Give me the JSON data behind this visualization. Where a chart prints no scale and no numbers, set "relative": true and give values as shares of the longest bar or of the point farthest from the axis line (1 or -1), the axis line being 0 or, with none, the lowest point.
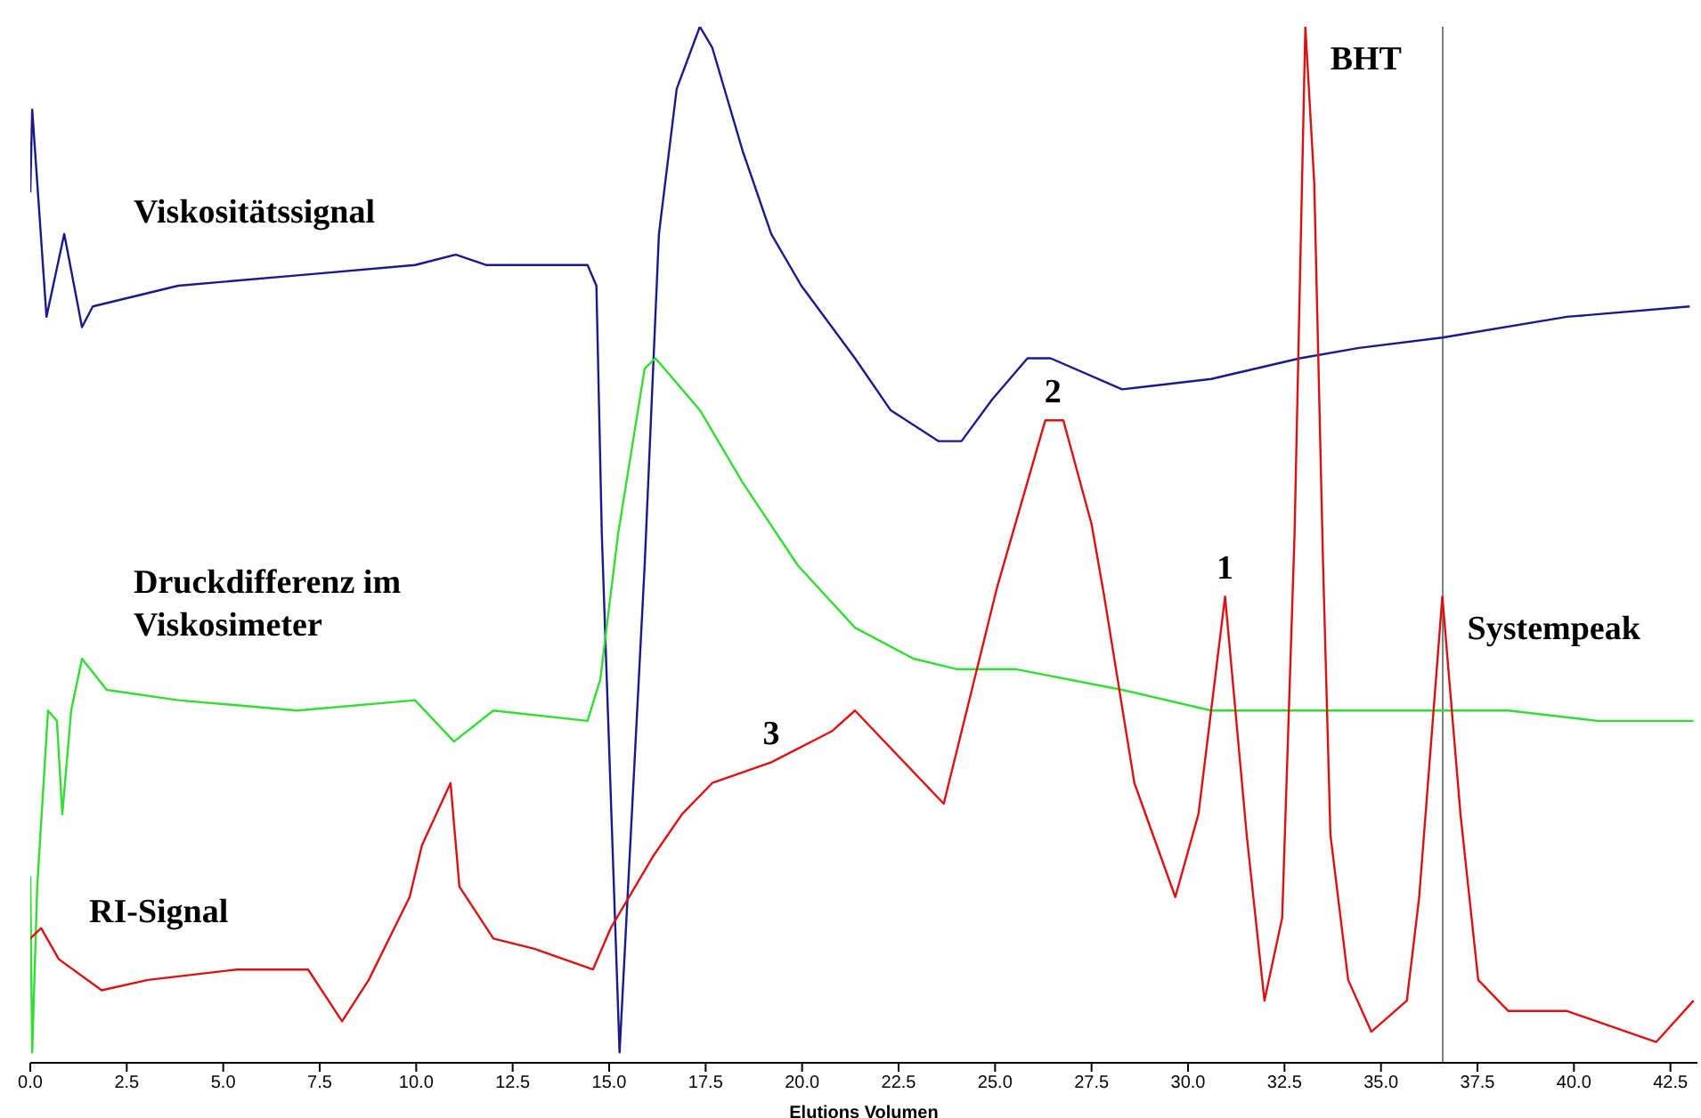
{
  "chart_data": {
    "type": "line",
    "relative": true,
    "xlabel": "Elutions Volumen",
    "xlim": [
      0,
      43.2
    ],
    "xticks": [
      {
        "value": 0,
        "label": "0.0"
      },
      {
        "value": 2.5,
        "label": "2.5"
      },
      {
        "value": 5,
        "label": "5.0"
      },
      {
        "value": 7.5,
        "label": "7.5"
      },
      {
        "value": 10,
        "label": "10.0"
      },
      {
        "value": 12.5,
        "label": "12.5"
      },
      {
        "value": 15,
        "label": "15.0"
      },
      {
        "value": 17.5,
        "label": "17.5"
      },
      {
        "value": 20,
        "label": "20.0"
      },
      {
        "value": 22.5,
        "label": "22.5"
      },
      {
        "value": 25,
        "label": "25.0"
      },
      {
        "value": 27.5,
        "label": "27.5"
      },
      {
        "value": 30,
        "label": "30.0"
      },
      {
        "value": 32.5,
        "label": "32.5"
      },
      {
        "value": 35,
        "label": "35.0"
      },
      {
        "value": 37.5,
        "label": "37.5"
      },
      {
        "value": 40,
        "label": "40.0"
      },
      {
        "value": 42.5,
        "label": "42.5"
      }
    ],
    "tick_labels": "x",
    "marker": "none",
    "line_style": "solid",
    "series": [
      {
        "name": "Viskositätssignal",
        "color": "#1a1a8c",
        "x": [
          0,
          0.05,
          0.42,
          0.88,
          1.34,
          1.62,
          3.83,
          6.92,
          9.97,
          11.03,
          11.81,
          14.44,
          14.67,
          14.81,
          15.27,
          15.92,
          16.29,
          16.75,
          17.35,
          17.67,
          18.46,
          19.2,
          19.98,
          21.37,
          22.29,
          23.53,
          24.13,
          24.92,
          25.84,
          26.44,
          28.29,
          30.6,
          32.9,
          34.43,
          36.59,
          39.82,
          43.0
        ],
        "values": [
          0.84,
          0.92,
          0.72,
          0.8,
          0.71,
          0.73,
          0.75,
          0.76,
          0.77,
          0.78,
          0.77,
          0.77,
          0.75,
          0.51,
          0.01,
          0.48,
          0.8,
          0.94,
          1.0,
          0.98,
          0.88,
          0.8,
          0.75,
          0.68,
          0.63,
          0.6,
          0.6,
          0.64,
          0.68,
          0.68,
          0.65,
          0.66,
          0.68,
          0.69,
          0.7,
          0.72,
          0.73
        ]
      },
      {
        "name": "Druckdifferenz im Viskosimeter",
        "color": "#33dd33",
        "x": [
          0,
          0.05,
          0.18,
          0.46,
          0.69,
          0.83,
          1.06,
          1.34,
          1.98,
          3.83,
          6.92,
          9.97,
          10.98,
          12.0,
          14.44,
          14.77,
          15.23,
          15.92,
          16.2,
          17.35,
          18.46,
          19.89,
          21.37,
          22.89,
          24.0,
          25.52,
          28.29,
          30.6,
          33.69,
          36.59,
          38.3,
          40.61,
          43.1
        ],
        "values": [
          0.18,
          0.01,
          0.17,
          0.34,
          0.33,
          0.24,
          0.34,
          0.39,
          0.36,
          0.35,
          0.34,
          0.35,
          0.31,
          0.34,
          0.33,
          0.37,
          0.51,
          0.67,
          0.68,
          0.63,
          0.56,
          0.48,
          0.42,
          0.39,
          0.38,
          0.38,
          0.36,
          0.34,
          0.34,
          0.34,
          0.34,
          0.33,
          0.33
        ]
      },
      {
        "name": "RI-Signal",
        "color": "#dd1111",
        "x": [
          0,
          0.28,
          0.74,
          1.85,
          3.05,
          5.35,
          7.2,
          8.08,
          8.77,
          9.83,
          10.15,
          10.89,
          11.12,
          12.0,
          13.06,
          14.58,
          15.04,
          16.15,
          16.89,
          17.67,
          19.2,
          20.77,
          21.37,
          23.67,
          25.06,
          26.3,
          26.77,
          27.5,
          27.83,
          28.61,
          29.67,
          30.27,
          30.96,
          31.52,
          31.98,
          32.44,
          32.76,
          33.04,
          33.27,
          33.5,
          33.69,
          34.15,
          34.75,
          35.67,
          35.99,
          36.59,
          37.06,
          37.52,
          38.3,
          39.82,
          42.13,
          43.1
        ],
        "values": [
          0.12,
          0.13,
          0.1,
          0.07,
          0.08,
          0.09,
          0.09,
          0.04,
          0.08,
          0.16,
          0.21,
          0.27,
          0.17,
          0.12,
          0.11,
          0.09,
          0.13,
          0.2,
          0.24,
          0.27,
          0.29,
          0.32,
          0.34,
          0.25,
          0.46,
          0.62,
          0.62,
          0.52,
          0.45,
          0.27,
          0.16,
          0.24,
          0.45,
          0.22,
          0.06,
          0.14,
          0.51,
          1.0,
          0.85,
          0.48,
          0.22,
          0.08,
          0.03,
          0.06,
          0.16,
          0.45,
          0.24,
          0.08,
          0.05,
          0.05,
          0.02,
          0.06
        ]
      }
    ],
    "ref_lines": [
      {
        "axis": "x",
        "value": 36.6,
        "color": "#808080"
      }
    ],
    "annotations": [
      {
        "text": "BHT",
        "x": 33.04,
        "y": 1.0
      },
      {
        "text": "2",
        "x": 26.5,
        "y": 0.62
      },
      {
        "text": "1",
        "x": 30.96,
        "y": 0.45
      },
      {
        "text": "3",
        "x": 19.2,
        "y": 0.29
      },
      {
        "text": "Systempeak",
        "x": 36.59,
        "y": 0.45
      }
    ]
  }
}
